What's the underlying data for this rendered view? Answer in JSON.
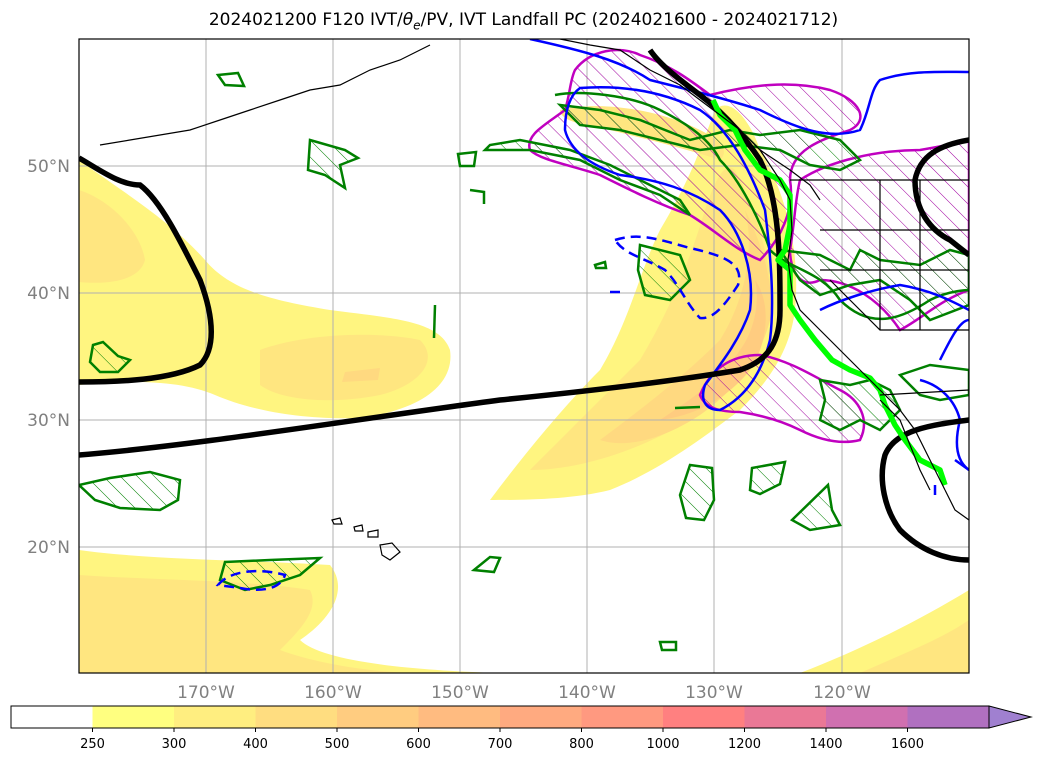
{
  "title": {
    "prefix": "2024021200 F120 IVT/",
    "theta": "θ",
    "theta_sub": "e",
    "suffix": "/PV, IVT Landfall PC (2024021600 - 2024021712)"
  },
  "map": {
    "projection": "platecarree",
    "lon_range": [
      -180,
      -110
    ],
    "lat_range": [
      10,
      60
    ],
    "gridlines": true,
    "lat_labels": [
      "20°N",
      "30°N",
      "40°N",
      "50°N"
    ],
    "lon_labels": [
      "170°W",
      "160°W",
      "150°W",
      "140°W",
      "130°W",
      "120°W"
    ],
    "layers": [
      {
        "name": "IVT",
        "type": "filled-contour"
      },
      {
        "name": "theta-e",
        "type": "contour",
        "color": "#0000ff"
      },
      {
        "name": "PV",
        "type": "contour",
        "color": "#008000"
      },
      {
        "name": "IVT Landfall PC",
        "type": "hatched-contour",
        "color": "#c000c0"
      },
      {
        "name": "trough-axis",
        "type": "line",
        "color": "#000000"
      },
      {
        "name": "landfall-path",
        "type": "line",
        "color": "#00ff00"
      }
    ]
  },
  "colorbar": {
    "extend": "max",
    "ticks": [
      "250",
      "300",
      "400",
      "500",
      "600",
      "700",
      "800",
      "1000",
      "1200",
      "1400",
      "1600"
    ],
    "colors": [
      "#ffff80",
      "#ffee80",
      "#ffdd80",
      "#ffcc80",
      "#ffbb80",
      "#ffaa80",
      "#ff9980",
      "#ff8080",
      "#ea7896",
      "#d070b0",
      "#b070c0",
      "#a080d0"
    ]
  }
}
